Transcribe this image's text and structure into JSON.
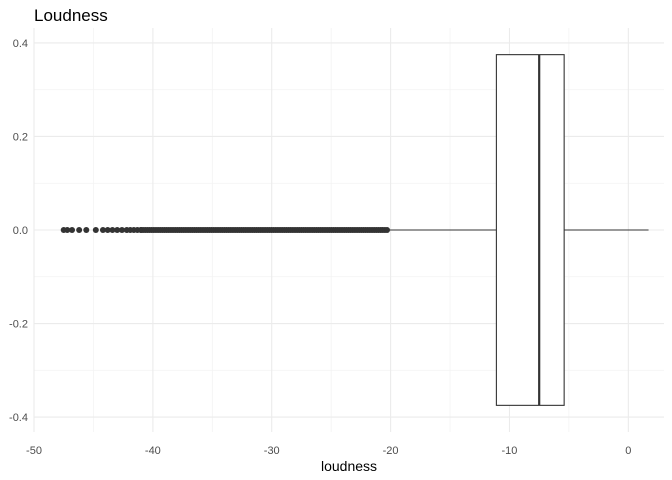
{
  "chart_data": {
    "type": "boxplot",
    "title": "Loudness",
    "xlabel": "loudness",
    "ylabel": "",
    "xlim": [
      -50,
      3
    ],
    "ylim": [
      -0.4,
      0.4
    ],
    "x_ticks": [
      -50,
      -40,
      -30,
      -20,
      -10,
      0
    ],
    "x_tick_labels": [
      "-50",
      "-40",
      "-30",
      "-20",
      "-10",
      "0"
    ],
    "y_ticks": [
      0.4,
      0.2,
      0.0,
      -0.2,
      -0.4
    ],
    "y_tick_labels": [
      "0.4",
      "0.2",
      "0.0",
      "-0.2",
      "-0.4"
    ],
    "grid": true,
    "box": {
      "lower_whisker": -20.2,
      "q1": -11.1,
      "median": -7.5,
      "q3": -5.4,
      "upper_whisker": 1.7,
      "y_center": 0.0,
      "half_width": 0.375
    },
    "outlier_range": [
      -47.5,
      -20.2
    ],
    "sparse_outliers": [
      -47.5,
      -47.2,
      -46.8,
      -46.2,
      -45.6,
      -44.8,
      -44.2,
      -43.8,
      -43.4,
      -43.0,
      -42.6,
      -42.2,
      -41.9,
      -41.6,
      -41.3,
      -41.0
    ]
  }
}
